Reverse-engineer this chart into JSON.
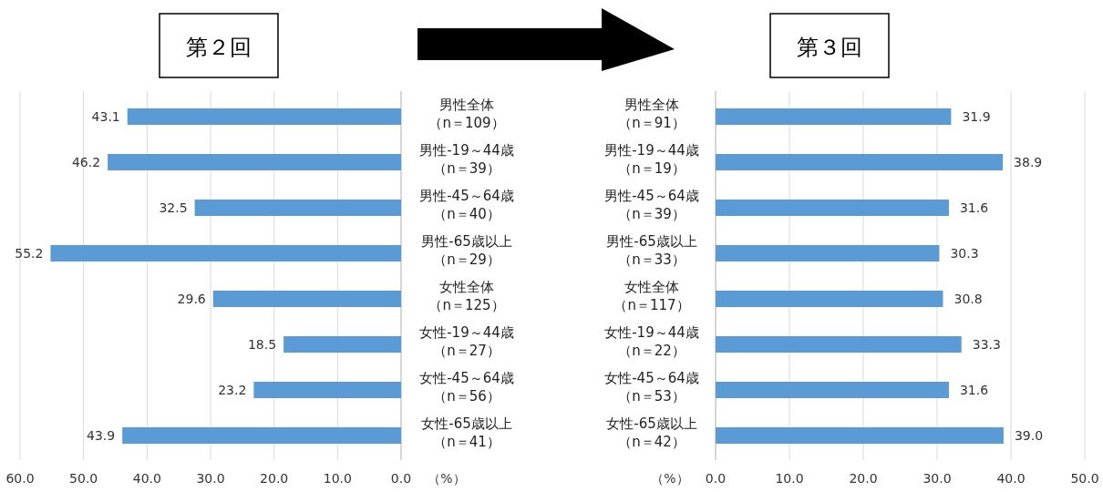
{
  "chart_data": [
    {
      "type": "bar",
      "orientation": "horizontal",
      "title": "第２回",
      "xlabel": "（%）",
      "grid": "x",
      "color": "#5b9bd5",
      "categories": [
        "男性全体（n＝109）",
        "男性-19～44歳（n＝39）",
        "男性-45～64歳（n＝40）",
        "男性-65歳以上（n＝29）",
        "女性全体（n＝125）",
        "女性-19～44歳（n＝27）",
        "女性-45～64歳（n＝56）",
        "女性-65歳以上（n＝41）"
      ],
      "values": [
        43.1,
        46.2,
        32.5,
        55.2,
        29.6,
        18.5,
        23.2,
        43.9
      ],
      "value_labels": [
        "43.1",
        "46.2",
        "32.5",
        "55.2",
        "29.6",
        "18.5",
        "23.2",
        "43.9"
      ],
      "xlim": [
        60,
        0
      ],
      "xticks": [
        {
          "value": 60,
          "label": "60.0"
        },
        {
          "value": 50,
          "label": "50.0"
        },
        {
          "value": 40,
          "label": "40.0"
        },
        {
          "value": 30,
          "label": "30.0"
        },
        {
          "value": 20,
          "label": "20.0"
        },
        {
          "value": 10,
          "label": "10.0"
        },
        {
          "value": 0,
          "label": "0.0"
        }
      ]
    },
    {
      "type": "bar",
      "orientation": "horizontal",
      "title": "第３回",
      "xlabel": "（%）",
      "grid": "x",
      "color": "#5b9bd5",
      "categories": [
        "男性全体（n＝91）",
        "男性-19～44歳（n＝19）",
        "男性-45～64歳（n＝39）",
        "男性-65歳以上（n＝33）",
        "女性全体（n＝117）",
        "女性-19～44歳（n＝22）",
        "女性-45～64歳（n＝53）",
        "女性-65歳以上（n＝42）"
      ],
      "values": [
        31.9,
        38.9,
        31.6,
        30.3,
        30.8,
        33.3,
        31.6,
        39.0
      ],
      "value_labels": [
        "31.9",
        "38.9",
        "31.6",
        "30.3",
        "30.8",
        "33.3",
        "31.6",
        "39.0"
      ],
      "xlim": [
        0,
        50
      ],
      "xticks": [
        {
          "value": 0,
          "label": "0.0"
        },
        {
          "value": 10,
          "label": "10.0"
        },
        {
          "value": 20,
          "label": "20.0"
        },
        {
          "value": 30,
          "label": "30.0"
        },
        {
          "value": 40,
          "label": "40.0"
        },
        {
          "value": 50,
          "label": "50.0"
        }
      ]
    }
  ]
}
